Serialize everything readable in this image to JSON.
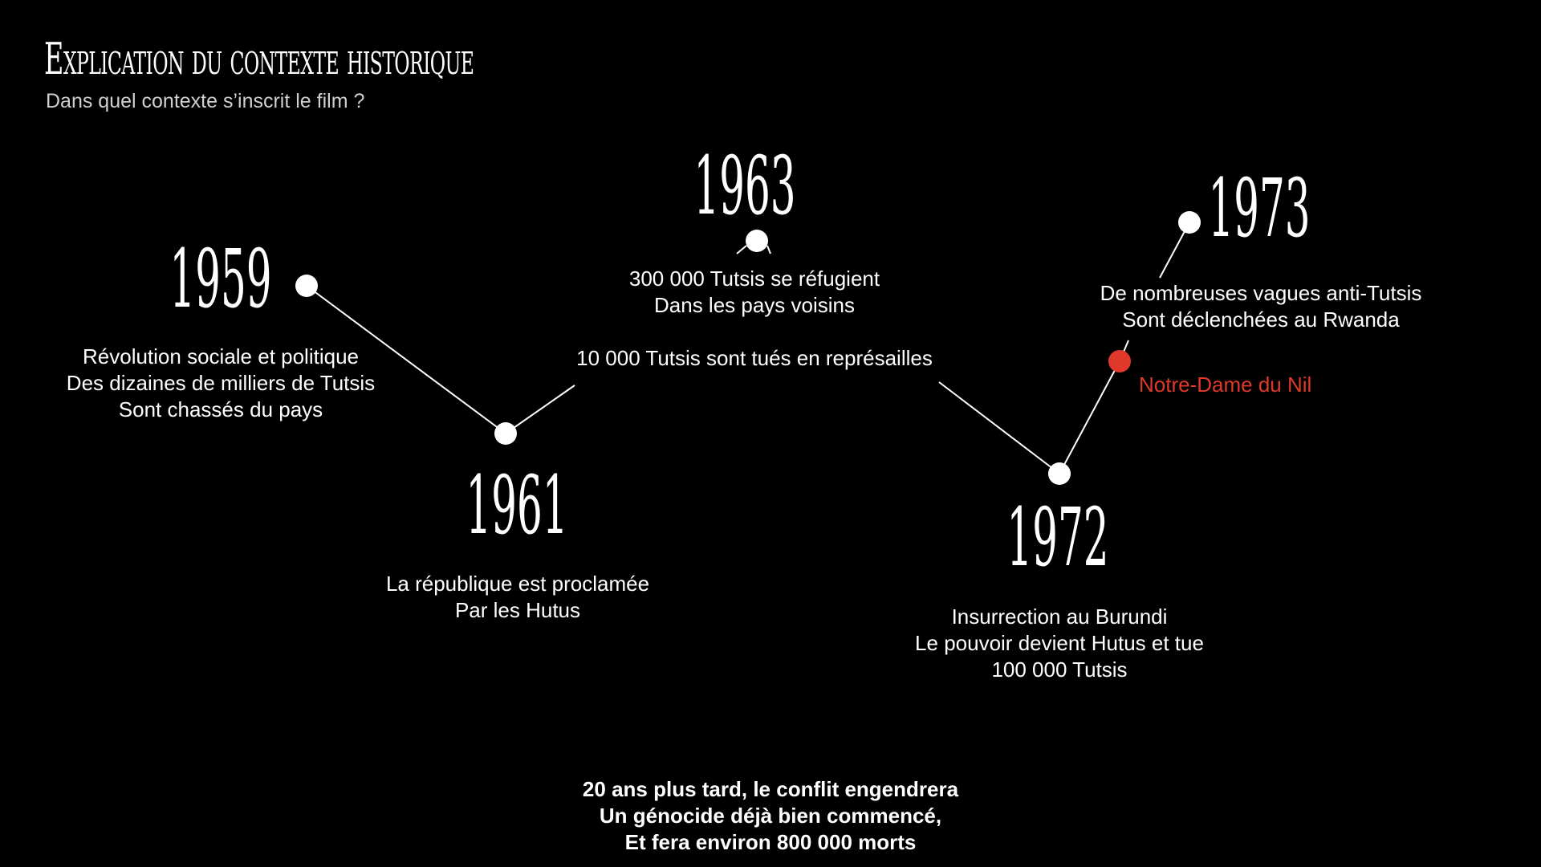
{
  "slide": {
    "title": "Explication du contexte historique",
    "subtitle": "Dans quel contexte s’inscrit le film ?"
  },
  "timeline": {
    "events": [
      {
        "year": "1959",
        "lines": [
          "Révolution sociale et politique",
          "Des dizaines de milliers de Tutsis",
          "Sont chassés du pays"
        ]
      },
      {
        "year": "1961",
        "lines": [
          "La république est proclamée",
          "Par les Hutus"
        ]
      },
      {
        "year": "1963",
        "lines": [
          "300 000 Tutsis se réfugient",
          "Dans les pays voisins"
        ],
        "extra": "10 000 Tutsis sont tués en représailles"
      },
      {
        "year": "1972",
        "lines": [
          "Insurrection au Burundi",
          "Le pouvoir devient Hutus et tue",
          "100 000 Tutsis"
        ]
      },
      {
        "year": "1973",
        "lines": [
          "De nombreuses vagues anti-Tutsis",
          "Sont déclenchées au Rwanda"
        ]
      }
    ],
    "film_marker": {
      "label": "Notre-Dame du Nil"
    }
  },
  "conclusion": {
    "lines": [
      "20 ans plus tard, le conflit engendrera",
      "Un génocide déjà bien commencé,",
      "Et fera environ 800 000 morts"
    ]
  },
  "colors": {
    "background": "#000000",
    "text": "#ffffff",
    "accent": "#e0392b"
  }
}
